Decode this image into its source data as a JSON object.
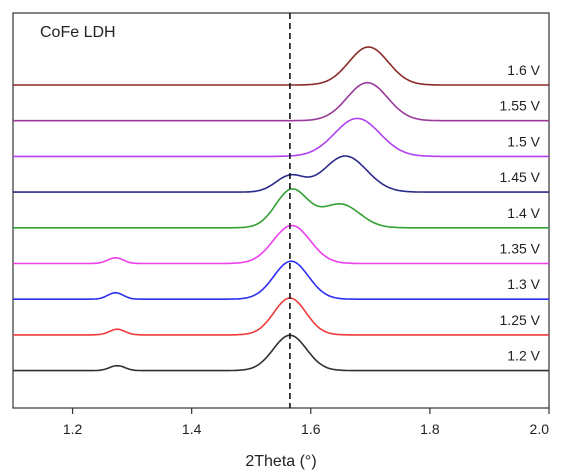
{
  "chart_data": {
    "type": "line",
    "title": "CoFe LDH",
    "xlabel": "2Theta (°)",
    "ylabel": "",
    "xlim": [
      1.1,
      2.0
    ],
    "x_ticks": [
      1.2,
      1.4,
      1.6,
      1.8,
      2.0
    ],
    "x_tick_labels": [
      "1.2",
      "1.4",
      "1.6",
      "1.8",
      "2.0"
    ],
    "y_ticks_shown": false,
    "grid": false,
    "legend": "inline labels on right",
    "reference_line": {
      "x": 1.565,
      "style": "dashed"
    },
    "series": [
      {
        "name": "1.2 V",
        "color": "#303030",
        "peaks": [
          {
            "center": 1.565,
            "height": 0.93,
            "width": 0.028
          },
          {
            "center": 1.275,
            "height": 0.13,
            "width": 0.013
          }
        ]
      },
      {
        "name": "1.25 V",
        "color": "#ef3b3b",
        "peaks": [
          {
            "center": 1.565,
            "height": 0.97,
            "width": 0.027
          },
          {
            "center": 1.275,
            "height": 0.15,
            "width": 0.013
          }
        ]
      },
      {
        "name": "1.3 V",
        "color": "#2e2ef0",
        "peaks": [
          {
            "center": 1.567,
            "height": 1.0,
            "width": 0.029
          },
          {
            "center": 1.272,
            "height": 0.17,
            "width": 0.013
          }
        ]
      },
      {
        "name": "1.35 V",
        "color": "#ee3fee",
        "peaks": [
          {
            "center": 1.568,
            "height": 1.0,
            "width": 0.031
          },
          {
            "center": 1.272,
            "height": 0.15,
            "width": 0.013
          }
        ]
      },
      {
        "name": "1.4 V",
        "color": "#33a033",
        "peaks": [
          {
            "center": 1.568,
            "height": 1.0,
            "width": 0.027
          },
          {
            "center": 1.65,
            "height": 0.62,
            "width": 0.032
          }
        ]
      },
      {
        "name": "1.45 V",
        "color": "#2a2a8c",
        "peaks": [
          {
            "center": 1.658,
            "height": 0.95,
            "width": 0.036
          },
          {
            "center": 1.565,
            "height": 0.42,
            "width": 0.024
          }
        ]
      },
      {
        "name": "1.5 V",
        "color": "#b040f0",
        "peaks": [
          {
            "center": 1.678,
            "height": 1.0,
            "width": 0.038
          }
        ]
      },
      {
        "name": "1.55 V",
        "color": "#9a3a9a",
        "peaks": [
          {
            "center": 1.695,
            "height": 1.0,
            "width": 0.034
          }
        ]
      },
      {
        "name": "1.6 V",
        "color": "#8a2a2a",
        "peaks": [
          {
            "center": 1.697,
            "height": 1.0,
            "width": 0.033
          }
        ]
      }
    ]
  }
}
